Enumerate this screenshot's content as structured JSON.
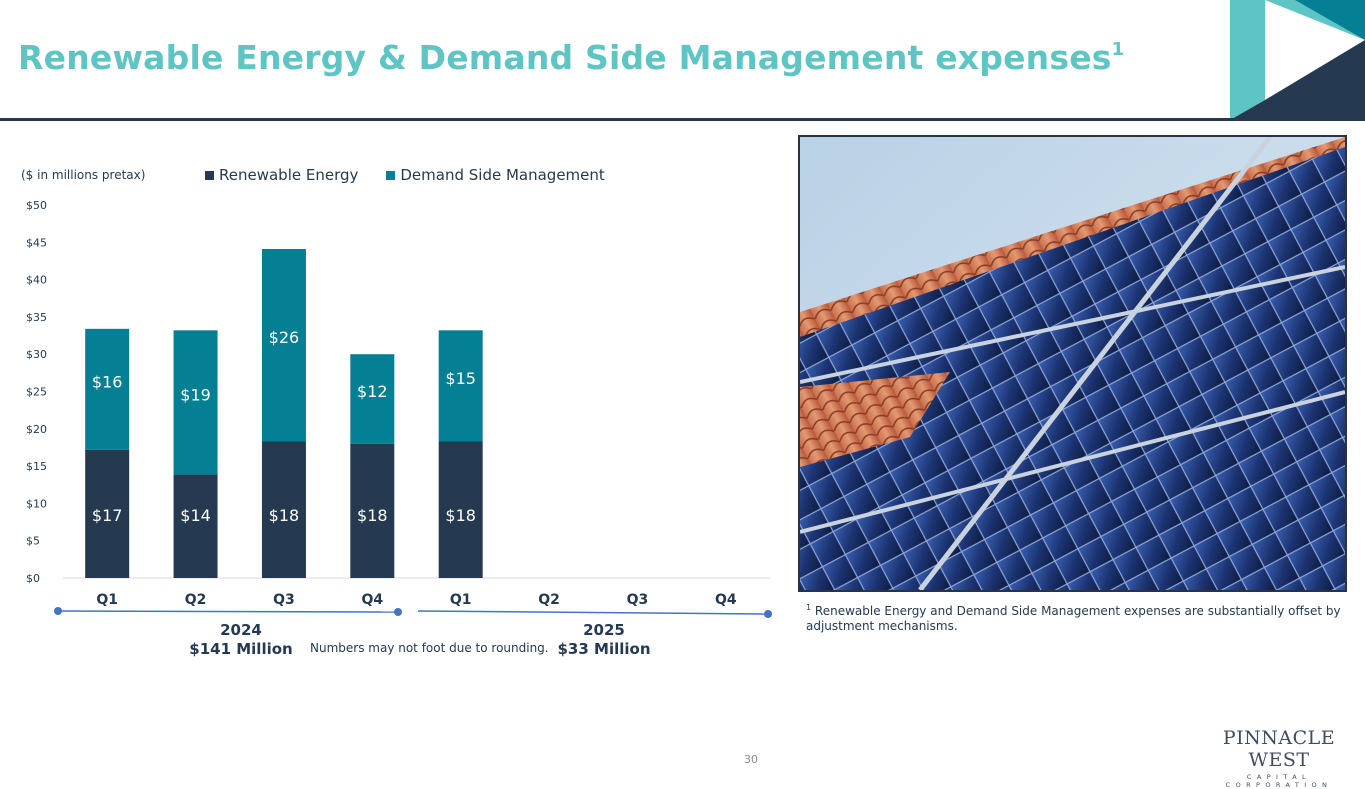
{
  "header": {
    "title": "Renewable Energy & Demand Side Management expenses",
    "title_sup": "1",
    "accent_color": "#5ec4c4",
    "navy_color": "#253a50"
  },
  "chart_data": {
    "type": "bar",
    "stacked": true,
    "units_note": "($ in millions pretax)",
    "categories": [
      "Q1",
      "Q2",
      "Q3",
      "Q4",
      "Q1",
      "Q2",
      "Q3",
      "Q4"
    ],
    "series": [
      {
        "name": "Renewable Energy",
        "color": "#253a50",
        "values": [
          17.2,
          13.9,
          18.3,
          18.0,
          18.3,
          null,
          null,
          null
        ],
        "labels": [
          "$17",
          "$14",
          "$18",
          "$18",
          "$18",
          "",
          "",
          ""
        ]
      },
      {
        "name": "Demand Side Management",
        "color": "#047f93",
        "values": [
          16.2,
          19.3,
          25.8,
          12.0,
          14.9,
          null,
          null,
          null
        ],
        "labels": [
          "$16",
          "$19",
          "$26",
          "$12",
          "$15",
          "",
          "",
          ""
        ]
      }
    ],
    "ylim": [
      0,
      50
    ],
    "yticks": [
      "$0",
      "$5",
      "$10",
      "$15",
      "$20",
      "$25",
      "$30",
      "$35",
      "$40",
      "$45",
      "$50"
    ],
    "legend_position": "top",
    "grid": false,
    "groups": [
      {
        "year": "2024",
        "total": "$141 Million"
      },
      {
        "year": "2025",
        "total": "$33 Million"
      }
    ],
    "rounding_note": "Numbers may not foot due to rounding."
  },
  "image": {
    "icon": "solar-panels-photo"
  },
  "footnote": {
    "marker": "1",
    "text": " Renewable Energy and Demand Side Management expenses are substantially offset by adjustment mechanisms."
  },
  "footer": {
    "page_number": "30",
    "logo_main": "PINNACLE WEST",
    "logo_sub": "CAPITAL CORPORATION"
  }
}
